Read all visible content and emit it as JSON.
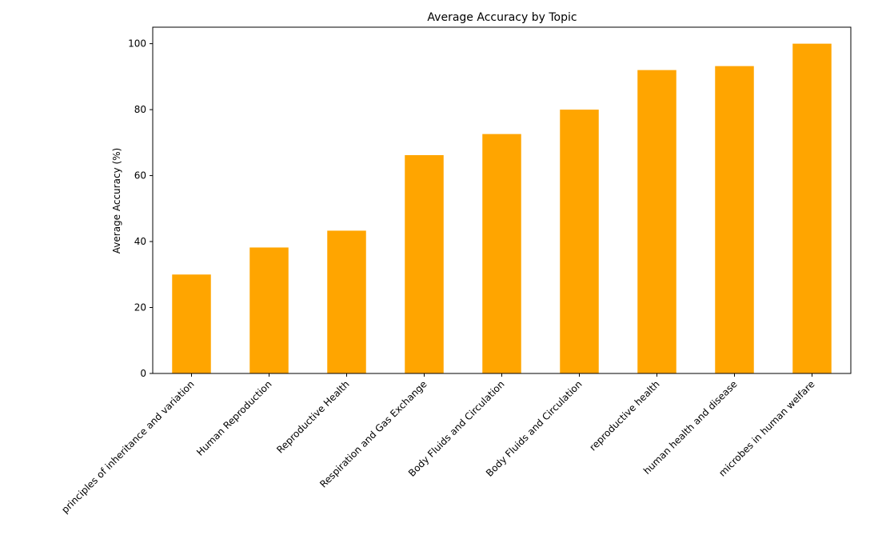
{
  "chart_data": {
    "type": "bar",
    "title": "Average Accuracy by Topic",
    "xlabel": "",
    "ylabel": "Average Accuracy (%)",
    "categories": [
      "principles of inheritance and variation",
      "Human Reproduction",
      "Reproductive Health",
      "Respiration and Gas Exchange",
      "Body Fluids and Circulation",
      "Body Fluids and Circulation",
      "reproductive health",
      "human health and disease",
      "microbes in human welfare"
    ],
    "values": [
      30,
      38.2,
      43.3,
      66.2,
      72.6,
      80,
      92,
      93.2,
      100
    ],
    "ylim": [
      0,
      105
    ],
    "yticks": [
      0,
      20,
      40,
      60,
      80,
      100
    ],
    "bar_color": "#FFA500",
    "grid": false,
    "legend": "none"
  }
}
